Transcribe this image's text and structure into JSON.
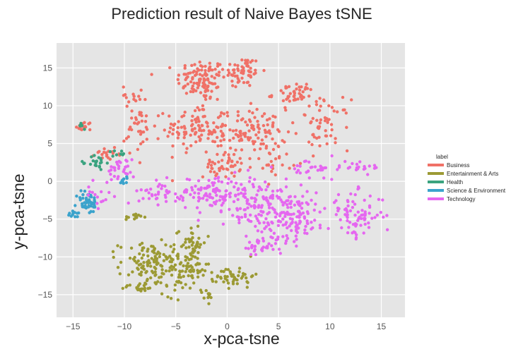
{
  "chart_data": {
    "type": "scatter",
    "title": "Prediction result of Naive Bayes tSNE",
    "xlabel": "x-pca-tsne",
    "ylabel": "y-pca-tsne",
    "xlim": [
      -16.6,
      17.3
    ],
    "ylim": [
      -18.0,
      18.3
    ],
    "xticks": [
      -15,
      -10,
      -5,
      0,
      5,
      10,
      15
    ],
    "yticks": [
      -15,
      -10,
      -5,
      0,
      5,
      10,
      15
    ],
    "grid": true,
    "background": "#e5e5e5",
    "legend": {
      "title": "label",
      "placement": "right",
      "entries": [
        {
          "name": "Business",
          "color": "#f07167"
        },
        {
          "name": "Entertainment & Arts",
          "color": "#9c9a34"
        },
        {
          "name": "Health",
          "color": "#3aa37f"
        },
        {
          "name": "Science & Environment",
          "color": "#3ba3cc"
        },
        {
          "name": "Technology",
          "color": "#e567f0"
        }
      ]
    },
    "series": [
      {
        "name": "Business",
        "color": "#f07167",
        "clusters": [
          {
            "cx": -2.5,
            "cy": 13.5,
            "sx": 1.6,
            "sy": 1.8,
            "n": 110
          },
          {
            "cx": 1.5,
            "cy": 14.5,
            "sx": 1.2,
            "sy": 1.4,
            "n": 60
          },
          {
            "cx": -3.0,
            "cy": 7.0,
            "sx": 2.0,
            "sy": 2.2,
            "n": 110
          },
          {
            "cx": 2.5,
            "cy": 6.5,
            "sx": 2.2,
            "sy": 2.0,
            "n": 110
          },
          {
            "cx": 6.5,
            "cy": 11.5,
            "sx": 1.4,
            "sy": 1.0,
            "n": 45
          },
          {
            "cx": 9.5,
            "cy": 7.5,
            "sx": 1.6,
            "sy": 2.2,
            "n": 55
          },
          {
            "cx": -8.5,
            "cy": 7.0,
            "sx": 1.0,
            "sy": 2.2,
            "n": 35
          },
          {
            "cx": -9.0,
            "cy": 11.5,
            "sx": 0.8,
            "sy": 0.8,
            "n": 14
          },
          {
            "cx": -0.5,
            "cy": 2.0,
            "sx": 1.2,
            "sy": 1.0,
            "n": 45
          },
          {
            "cx": -11.5,
            "cy": 3.8,
            "sx": 0.9,
            "sy": 0.6,
            "n": 20
          },
          {
            "cx": -13.9,
            "cy": 7.2,
            "sx": 0.5,
            "sy": 0.5,
            "n": 18
          },
          {
            "cx": 4.5,
            "cy": 2.5,
            "sx": 1.2,
            "sy": 1.0,
            "n": 20
          }
        ]
      },
      {
        "name": "Entertainment & Arts",
        "color": "#9c9a34",
        "clusters": [
          {
            "cx": -7.5,
            "cy": -11.0,
            "sx": 2.0,
            "sy": 2.0,
            "n": 110
          },
          {
            "cx": -4.0,
            "cy": -12.0,
            "sx": 1.5,
            "sy": 2.0,
            "n": 80
          },
          {
            "cx": -3.5,
            "cy": -8.0,
            "sx": 1.0,
            "sy": 1.5,
            "n": 40
          },
          {
            "cx": 0.8,
            "cy": -12.5,
            "sx": 1.2,
            "sy": 1.0,
            "n": 45
          },
          {
            "cx": -1.8,
            "cy": -15.5,
            "sx": 0.4,
            "sy": 0.8,
            "n": 10
          },
          {
            "cx": -8.5,
            "cy": -14.0,
            "sx": 1.0,
            "sy": 0.4,
            "n": 20
          },
          {
            "cx": -9.0,
            "cy": -4.7,
            "sx": 0.6,
            "sy": 0.3,
            "n": 12
          }
        ]
      },
      {
        "name": "Health",
        "color": "#3aa37f",
        "clusters": [
          {
            "cx": -12.7,
            "cy": 2.5,
            "sx": 0.6,
            "sy": 0.7,
            "n": 22
          },
          {
            "cx": -14.2,
            "cy": 7.3,
            "sx": 0.3,
            "sy": 0.3,
            "n": 6
          },
          {
            "cx": -10.5,
            "cy": 3.5,
            "sx": 0.5,
            "sy": 0.5,
            "n": 8
          }
        ]
      },
      {
        "name": "Science & Environment",
        "color": "#3ba3cc",
        "clusters": [
          {
            "cx": -13.6,
            "cy": -2.8,
            "sx": 0.7,
            "sy": 1.0,
            "n": 50
          },
          {
            "cx": -14.8,
            "cy": -4.4,
            "sx": 0.5,
            "sy": 0.3,
            "n": 12
          },
          {
            "cx": -10.0,
            "cy": 0.2,
            "sx": 0.6,
            "sy": 0.4,
            "n": 10
          }
        ]
      },
      {
        "name": "Technology",
        "color": "#e567f0",
        "clusters": [
          {
            "cx": 6.0,
            "cy": -4.5,
            "sx": 2.5,
            "sy": 2.0,
            "n": 150
          },
          {
            "cx": 2.5,
            "cy": -2.0,
            "sx": 2.2,
            "sy": 2.0,
            "n": 100
          },
          {
            "cx": 12.5,
            "cy": -4.5,
            "sx": 1.8,
            "sy": 2.0,
            "n": 80
          },
          {
            "cx": -2.0,
            "cy": -1.5,
            "sx": 2.0,
            "sy": 1.5,
            "n": 90
          },
          {
            "cx": -6.5,
            "cy": -1.5,
            "sx": 1.4,
            "sy": 1.0,
            "n": 35
          },
          {
            "cx": 3.5,
            "cy": -8.5,
            "sx": 1.5,
            "sy": 1.2,
            "n": 40
          },
          {
            "cx": 8.5,
            "cy": 1.5,
            "sx": 1.5,
            "sy": 1.0,
            "n": 30
          },
          {
            "cx": -10.5,
            "cy": 1.5,
            "sx": 1.0,
            "sy": 1.0,
            "n": 30
          },
          {
            "cx": 13.0,
            "cy": 2.0,
            "sx": 1.5,
            "sy": 0.6,
            "n": 20
          },
          {
            "cx": -12.5,
            "cy": -2.0,
            "sx": 0.8,
            "sy": 1.2,
            "n": 15
          }
        ]
      }
    ]
  }
}
